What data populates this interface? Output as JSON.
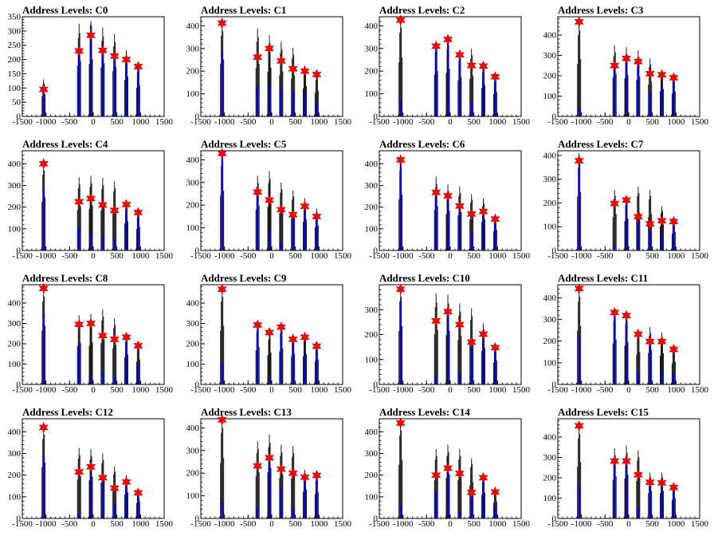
{
  "figure_title": "",
  "chart_data": [
    {
      "type": "bar",
      "title": "Address Levels: C0",
      "xlim": [
        -1500,
        1500
      ],
      "ylim": [
        0,
        350
      ],
      "yticks": [
        0,
        50,
        100,
        150,
        200,
        250,
        300,
        350
      ],
      "xticks": [
        -1500,
        -1000,
        -500,
        0,
        500,
        1000,
        1500
      ],
      "xtick_labels": [
        "-1500",
        "-1000",
        "-500",
        "0",
        "500",
        "1000",
        "1500"
      ],
      "peaks_x": [
        -1050,
        -300,
        -50,
        200,
        450,
        700,
        950
      ],
      "peaks_y": [
        95,
        230,
        285,
        232,
        212,
        200,
        175
      ],
      "black_max": [
        130,
        325,
        335,
        312,
        290,
        232,
        183
      ],
      "blue_height": [
        100,
        215,
        320,
        220,
        205,
        190,
        170
      ]
    },
    {
      "type": "bar",
      "title": "Address Levels: C1",
      "xlim": [
        -1500,
        1500
      ],
      "ylim": [
        0,
        440
      ],
      "yticks": [
        0,
        100,
        200,
        300,
        400
      ],
      "xticks": [
        -1500,
        -1000,
        -500,
        0,
        500,
        1000,
        1500
      ],
      "xtick_labels": [
        "-1500",
        "-1000",
        "-500",
        "0",
        "500",
        "1000",
        "1500"
      ],
      "peaks_x": [
        -1050,
        -300,
        -50,
        200,
        450,
        700,
        950
      ],
      "peaks_y": [
        412,
        262,
        300,
        245,
        210,
        200,
        185
      ],
      "black_max": [
        420,
        388,
        358,
        330,
        302,
        225,
        190
      ],
      "blue_height": [
        280,
        130,
        140,
        120,
        110,
        100,
        60
      ]
    },
    {
      "type": "bar",
      "title": "Address Levels: C2",
      "xlim": [
        -1500,
        1500
      ],
      "ylim": [
        0,
        440
      ],
      "yticks": [
        0,
        100,
        200,
        300,
        400
      ],
      "xticks": [
        -1500,
        -1000,
        -500,
        0,
        500,
        1000,
        1500
      ],
      "xtick_labels": [
        "-1500",
        "-1000",
        "-500",
        "0",
        "500",
        "1000",
        "1500"
      ],
      "peaks_x": [
        -1050,
        -300,
        -50,
        200,
        450,
        700,
        950
      ],
      "peaks_y": [
        425,
        310,
        340,
        272,
        225,
        222,
        175
      ],
      "black_max": [
        435,
        335,
        350,
        290,
        300,
        230,
        180
      ],
      "blue_height": [
        70,
        300,
        335,
        260,
        65,
        220,
        170
      ]
    },
    {
      "type": "bar",
      "title": "Address Levels: C3",
      "xlim": [
        -1500,
        1500
      ],
      "ylim": [
        0,
        490
      ],
      "yticks": [
        0,
        100,
        200,
        300,
        400
      ],
      "xticks": [
        -1500,
        -1000,
        -500,
        0,
        500,
        1000,
        1500
      ],
      "xtick_labels": [
        "-1500",
        "-1000",
        "-500",
        "0",
        "500",
        "1000",
        "1500"
      ],
      "peaks_x": [
        -1050,
        -300,
        -50,
        200,
        450,
        700,
        950
      ],
      "peaks_y": [
        465,
        250,
        285,
        270,
        210,
        205,
        190
      ],
      "black_max": [
        470,
        350,
        340,
        325,
        285,
        225,
        205
      ],
      "blue_height": [
        40,
        240,
        280,
        260,
        120,
        140,
        180
      ]
    },
    {
      "type": "bar",
      "title": "Address Levels: C4",
      "xlim": [
        -1500,
        1500
      ],
      "ylim": [
        0,
        460
      ],
      "yticks": [
        0,
        100,
        200,
        300,
        400
      ],
      "xticks": [
        -1500,
        -1000,
        -500,
        0,
        500,
        1000,
        1500
      ],
      "xtick_labels": [
        "-1500",
        "-1000",
        "-500",
        "0",
        "500",
        "1000",
        "1500"
      ],
      "peaks_x": [
        -1050,
        -300,
        -50,
        200,
        450,
        700,
        950
      ],
      "peaks_y": [
        400,
        225,
        240,
        210,
        185,
        212,
        175
      ],
      "black_max": [
        410,
        338,
        345,
        335,
        320,
        225,
        180
      ],
      "blue_height": [
        285,
        105,
        75,
        70,
        55,
        210,
        165
      ]
    },
    {
      "type": "bar",
      "title": "Address Levels: C5",
      "xlim": [
        -1500,
        1500
      ],
      "ylim": [
        0,
        440
      ],
      "yticks": [
        0,
        100,
        200,
        300,
        400
      ],
      "xticks": [
        -1500,
        -1000,
        -500,
        0,
        500,
        1000,
        1500
      ],
      "xtick_labels": [
        "-1500",
        "-1000",
        "-500",
        "0",
        "500",
        "1000",
        "1500"
      ],
      "peaks_x": [
        -1050,
        -300,
        -50,
        200,
        450,
        700,
        950
      ],
      "peaks_y": [
        428,
        258,
        222,
        180,
        158,
        195,
        150
      ],
      "black_max": [
        440,
        330,
        350,
        300,
        265,
        230,
        185
      ],
      "blue_height": [
        420,
        255,
        90,
        35,
        145,
        180,
        150
      ]
    },
    {
      "type": "bar",
      "title": "Address Levels: C6",
      "xlim": [
        -1500,
        1500
      ],
      "ylim": [
        0,
        460
      ],
      "yticks": [
        0,
        100,
        200,
        300,
        400
      ],
      "xticks": [
        -1500,
        -1000,
        -500,
        0,
        500,
        1000,
        1500
      ],
      "xtick_labels": [
        "-1500",
        "-1000",
        "-500",
        "0",
        "500",
        "1000",
        "1500"
      ],
      "peaks_x": [
        -1050,
        -300,
        -50,
        200,
        450,
        700,
        950
      ],
      "peaks_y": [
        418,
        268,
        252,
        205,
        168,
        180,
        145
      ],
      "black_max": [
        430,
        340,
        305,
        295,
        260,
        240,
        160
      ],
      "blue_height": [
        410,
        260,
        248,
        190,
        80,
        160,
        145
      ]
    },
    {
      "type": "bar",
      "title": "Address Levels: C7",
      "xlim": [
        -1500,
        1500
      ],
      "ylim": [
        0,
        420
      ],
      "yticks": [
        0,
        100,
        200,
        300,
        400
      ],
      "xticks": [
        -1500,
        -1000,
        -500,
        0,
        500,
        1000,
        1500
      ],
      "xtick_labels": [
        "-1500",
        "-1000",
        "-500",
        "0",
        "500",
        "1000",
        "1500"
      ],
      "peaks_x": [
        -1050,
        -300,
        -50,
        200,
        450,
        700,
        950
      ],
      "peaks_y": [
        378,
        198,
        212,
        142,
        112,
        125,
        122
      ],
      "black_max": [
        410,
        255,
        225,
        268,
        255,
        185,
        130
      ],
      "blue_height": [
        370,
        25,
        200,
        140,
        80,
        65,
        120
      ]
    },
    {
      "type": "bar",
      "title": "Address Levels: C8",
      "xlim": [
        -1500,
        1500
      ],
      "ylim": [
        0,
        490
      ],
      "yticks": [
        0,
        100,
        200,
        300,
        400
      ],
      "xticks": [
        -1500,
        -1000,
        -500,
        0,
        500,
        1000,
        1500
      ],
      "xtick_labels": [
        "-1500",
        "-1000",
        "-500",
        "0",
        "500",
        "1000",
        "1500"
      ],
      "peaks_x": [
        -1050,
        -300,
        -50,
        200,
        450,
        700,
        950
      ],
      "peaks_y": [
        472,
        295,
        300,
        240,
        222,
        232,
        190
      ],
      "black_max": [
        480,
        340,
        345,
        370,
        325,
        245,
        205
      ],
      "blue_height": [
        345,
        200,
        45,
        60,
        35,
        215,
        95
      ]
    },
    {
      "type": "bar",
      "title": "Address Levels: C9",
      "xlim": [
        -1500,
        1500
      ],
      "ylim": [
        0,
        490
      ],
      "yticks": [
        0,
        100,
        200,
        300,
        400
      ],
      "xticks": [
        -1500,
        -1000,
        -500,
        0,
        500,
        1000,
        1500
      ],
      "xtick_labels": [
        "-1500",
        "-1000",
        "-500",
        "0",
        "500",
        "1000",
        "1500"
      ],
      "peaks_x": [
        -1050,
        -300,
        -50,
        200,
        450,
        700,
        950
      ],
      "peaks_y": [
        468,
        292,
        255,
        282,
        222,
        232,
        188
      ],
      "black_max": [
        480,
        305,
        260,
        295,
        250,
        250,
        205
      ],
      "blue_height": [
        110,
        285,
        30,
        275,
        210,
        140,
        180
      ]
    },
    {
      "type": "bar",
      "title": "Address Levels: C10",
      "xlim": [
        -1500,
        1500
      ],
      "ylim": [
        0,
        400
      ],
      "yticks": [
        0,
        100,
        200,
        300
      ],
      "xticks": [
        -1500,
        -1000,
        -500,
        0,
        500,
        1000,
        1500
      ],
      "xtick_labels": [
        "-1500",
        "-1000",
        "-500",
        "0",
        "500",
        "1000",
        "1500"
      ],
      "peaks_x": [
        -1050,
        -300,
        -50,
        200,
        450,
        700,
        950
      ],
      "peaks_y": [
        382,
        255,
        292,
        240,
        170,
        202,
        148
      ],
      "black_max": [
        390,
        365,
        360,
        325,
        305,
        245,
        160
      ],
      "blue_height": [
        335,
        35,
        280,
        45,
        160,
        190,
        140
      ]
    },
    {
      "type": "bar",
      "title": "Address Levels: C11",
      "xlim": [
        -1500,
        1500
      ],
      "ylim": [
        0,
        460
      ],
      "yticks": [
        0,
        100,
        200,
        300,
        400
      ],
      "xticks": [
        -1500,
        -1000,
        -500,
        0,
        500,
        1000,
        1500
      ],
      "xtick_labels": [
        "-1500",
        "-1000",
        "-500",
        "0",
        "500",
        "1000",
        "1500"
      ],
      "peaks_x": [
        -1050,
        -300,
        -50,
        200,
        450,
        700,
        950
      ],
      "peaks_y": [
        442,
        332,
        318,
        232,
        198,
        198,
        162
      ],
      "black_max": [
        450,
        345,
        325,
        250,
        265,
        240,
        175
      ],
      "blue_height": [
        220,
        325,
        310,
        60,
        190,
        60,
        50
      ]
    },
    {
      "type": "bar",
      "title": "Address Levels: C12",
      "xlim": [
        -1500,
        1500
      ],
      "ylim": [
        0,
        460
      ],
      "yticks": [
        0,
        100,
        200,
        300,
        400
      ],
      "xticks": [
        -1500,
        -1000,
        -500,
        0,
        500,
        1000,
        1500
      ],
      "xtick_labels": [
        "-1500",
        "-1000",
        "-500",
        "0",
        "500",
        "1000",
        "1500"
      ],
      "peaks_x": [
        -1050,
        -300,
        -50,
        200,
        450,
        700,
        950
      ],
      "peaks_y": [
        420,
        215,
        238,
        188,
        140,
        168,
        118
      ],
      "black_max": [
        430,
        325,
        320,
        300,
        240,
        200,
        130
      ],
      "blue_height": [
        290,
        20,
        200,
        180,
        65,
        160,
        110
      ]
    },
    {
      "type": "bar",
      "title": "Address Levels: C13",
      "xlim": [
        -1500,
        1500
      ],
      "ylim": [
        0,
        440
      ],
      "yticks": [
        0,
        100,
        200,
        300,
        400
      ],
      "xticks": [
        -1500,
        -1000,
        -500,
        0,
        500,
        1000,
        1500
      ],
      "xtick_labels": [
        "-1500",
        "-1000",
        "-500",
        "0",
        "500",
        "1000",
        "1500"
      ],
      "peaks_x": [
        -1050,
        -300,
        -50,
        200,
        450,
        700,
        950
      ],
      "peaks_y": [
        435,
        232,
        268,
        218,
        200,
        182,
        190
      ],
      "black_max": [
        445,
        340,
        370,
        325,
        320,
        215,
        195
      ],
      "blue_height": [
        70,
        50,
        255,
        130,
        45,
        170,
        185
      ]
    },
    {
      "type": "bar",
      "title": "Address Levels: C14",
      "xlim": [
        -1500,
        1500
      ],
      "ylim": [
        0,
        460
      ],
      "yticks": [
        0,
        100,
        200,
        300,
        400
      ],
      "xticks": [
        -1500,
        -1000,
        -500,
        0,
        500,
        1000,
        1500
      ],
      "xtick_labels": [
        "-1500",
        "-1000",
        "-500",
        "0",
        "500",
        "1000",
        "1500"
      ],
      "peaks_x": [
        -1050,
        -300,
        -50,
        200,
        450,
        700,
        950
      ],
      "peaks_y": [
        440,
        200,
        232,
        208,
        120,
        188,
        122
      ],
      "black_max": [
        450,
        320,
        340,
        320,
        278,
        200,
        130
      ],
      "blue_height": [
        60,
        125,
        225,
        30,
        110,
        180,
        60
      ]
    },
    {
      "type": "bar",
      "title": "Address Levels: C15",
      "xlim": [
        -1500,
        1500
      ],
      "ylim": [
        0,
        490
      ],
      "yticks": [
        0,
        100,
        200,
        300,
        400
      ],
      "xticks": [
        -1500,
        -1000,
        -500,
        0,
        500,
        1000,
        1500
      ],
      "xtick_labels": [
        "-1500",
        "-1000",
        "-500",
        "0",
        "500",
        "1000",
        "1500"
      ],
      "peaks_x": [
        -1050,
        -300,
        -50,
        200,
        450,
        700,
        950
      ],
      "peaks_y": [
        455,
        282,
        282,
        215,
        178,
        175,
        152
      ],
      "black_max": [
        462,
        345,
        358,
        335,
        225,
        225,
        165
      ],
      "blue_height": [
        160,
        275,
        270,
        50,
        170,
        165,
        145
      ]
    }
  ]
}
